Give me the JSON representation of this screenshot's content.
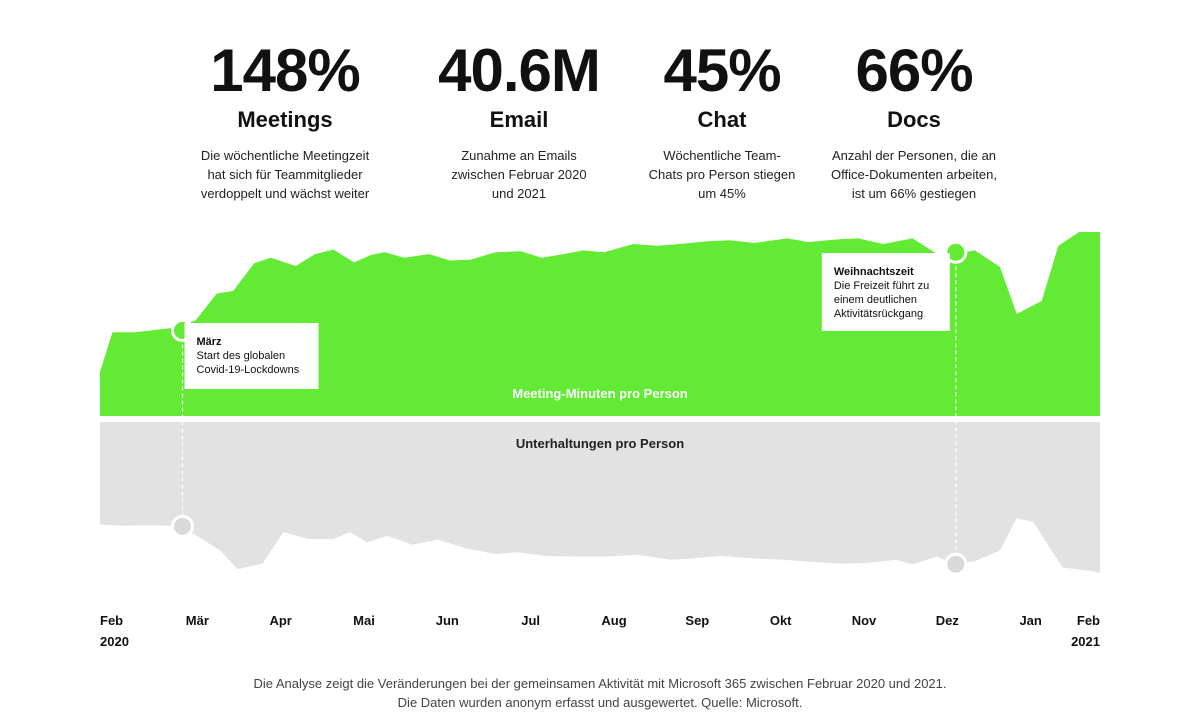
{
  "stats": [
    {
      "value": "148%",
      "label": "Meetings",
      "desc": [
        "Die wöchentliche Meetingzeit",
        "hat sich für Teammitglieder",
        "verdoppelt und wächst weiter"
      ]
    },
    {
      "value": "40.6M",
      "label": "Email",
      "desc": [
        "Zunahme an Emails",
        "zwischen Februar 2020",
        "und 2021"
      ]
    },
    {
      "value": "45%",
      "label": "Chat",
      "desc": [
        "Wöchentliche Team-",
        "Chats pro Person stiegen",
        "um 45%"
      ]
    },
    {
      "value": "66%",
      "label": "Docs",
      "desc": [
        "Anzahl der Personen, die an",
        "Office-Dokumenten arbeiten,",
        "ist um 66% gestiegen"
      ]
    }
  ],
  "chart_data": {
    "type": "area",
    "x_labels": [
      "Feb",
      "Mär",
      "Apr",
      "Mai",
      "Jun",
      "Jul",
      "Aug",
      "Sep",
      "Okt",
      "Nov",
      "Dez",
      "Jan",
      "Feb"
    ],
    "year_labels": {
      "start": "2020",
      "end": "2021"
    },
    "series": [
      {
        "name": "Meeting-Minuten pro Person",
        "color": "#62ea35",
        "x": [
          0,
          0.15,
          0.42,
          0.62,
          0.88,
          1.15,
          1.4,
          1.6,
          1.85,
          2.05,
          2.35,
          2.58,
          2.8,
          3.05,
          3.25,
          3.42,
          3.65,
          3.95,
          4.2,
          4.45,
          4.75,
          5.05,
          5.3,
          5.5,
          5.8,
          6.05,
          6.4,
          6.7,
          6.95,
          7.3,
          7.55,
          7.85,
          8.25,
          8.5,
          8.85,
          9.1,
          9.4,
          9.75,
          10.05,
          10.3,
          10.5,
          10.8,
          11.0,
          11.3,
          11.5,
          11.75,
          12.0
        ],
        "values": [
          48,
          91,
          91,
          93,
          96,
          104,
          133,
          136,
          166,
          172,
          163,
          176,
          181,
          167,
          175,
          178,
          172,
          176,
          169,
          170,
          178,
          179,
          172,
          175,
          180,
          178,
          187,
          185,
          187,
          190,
          191,
          188,
          193,
          189,
          192,
          193,
          187,
          193,
          176,
          177,
          180,
          162,
          111,
          125,
          185,
          200,
          200
        ]
      },
      {
        "name": "Unterhaltungen pro Person",
        "color": "#e2e2e2",
        "x": [
          0,
          0.25,
          0.55,
          0.85,
          1.05,
          1.2,
          1.45,
          1.65,
          1.95,
          2.2,
          2.5,
          2.8,
          3.0,
          3.2,
          3.45,
          3.75,
          4.05,
          4.4,
          4.75,
          5.0,
          5.35,
          5.75,
          6.05,
          6.45,
          6.85,
          7.1,
          7.45,
          7.85,
          8.2,
          8.6,
          8.9,
          9.2,
          9.55,
          9.75,
          10.05,
          10.25,
          10.5,
          10.8,
          11.0,
          11.2,
          11.55,
          11.9,
          12.0
        ],
        "values": [
          96,
          94,
          95,
          94,
          87,
          75,
          54,
          25,
          34,
          84,
          73,
          73,
          84,
          68,
          78,
          64,
          72,
          58,
          49,
          52,
          46,
          45,
          45,
          48,
          40,
          42,
          46,
          42,
          40,
          36,
          34,
          35,
          40,
          33,
          45,
          33,
          38,
          55,
          106,
          100,
          28,
          22,
          19
        ]
      }
    ],
    "annotations": [
      {
        "title": "März",
        "text": [
          "Start des globalen",
          "Covid-19-Lockdowns"
        ],
        "x": 0.99,
        "green_y": 93,
        "grey_y": 93
      },
      {
        "title": "Weihnachtszeit",
        "text": [
          "Die Freizeit führt zu",
          "einem deutlichen",
          "Aktivitätsrückgang"
        ],
        "x": 10.27,
        "green_y": 178,
        "grey_y": 33
      }
    ],
    "ylim": [
      0,
      200
    ]
  },
  "footer": [
    "Die Analyse zeigt die Veränderungen bei der gemeinsamen Aktivität mit Microsoft 365 zwischen Februar 2020 und 2021.",
    "Die Daten wurden anonym erfasst und ausgewertet. Quelle: Microsoft."
  ]
}
